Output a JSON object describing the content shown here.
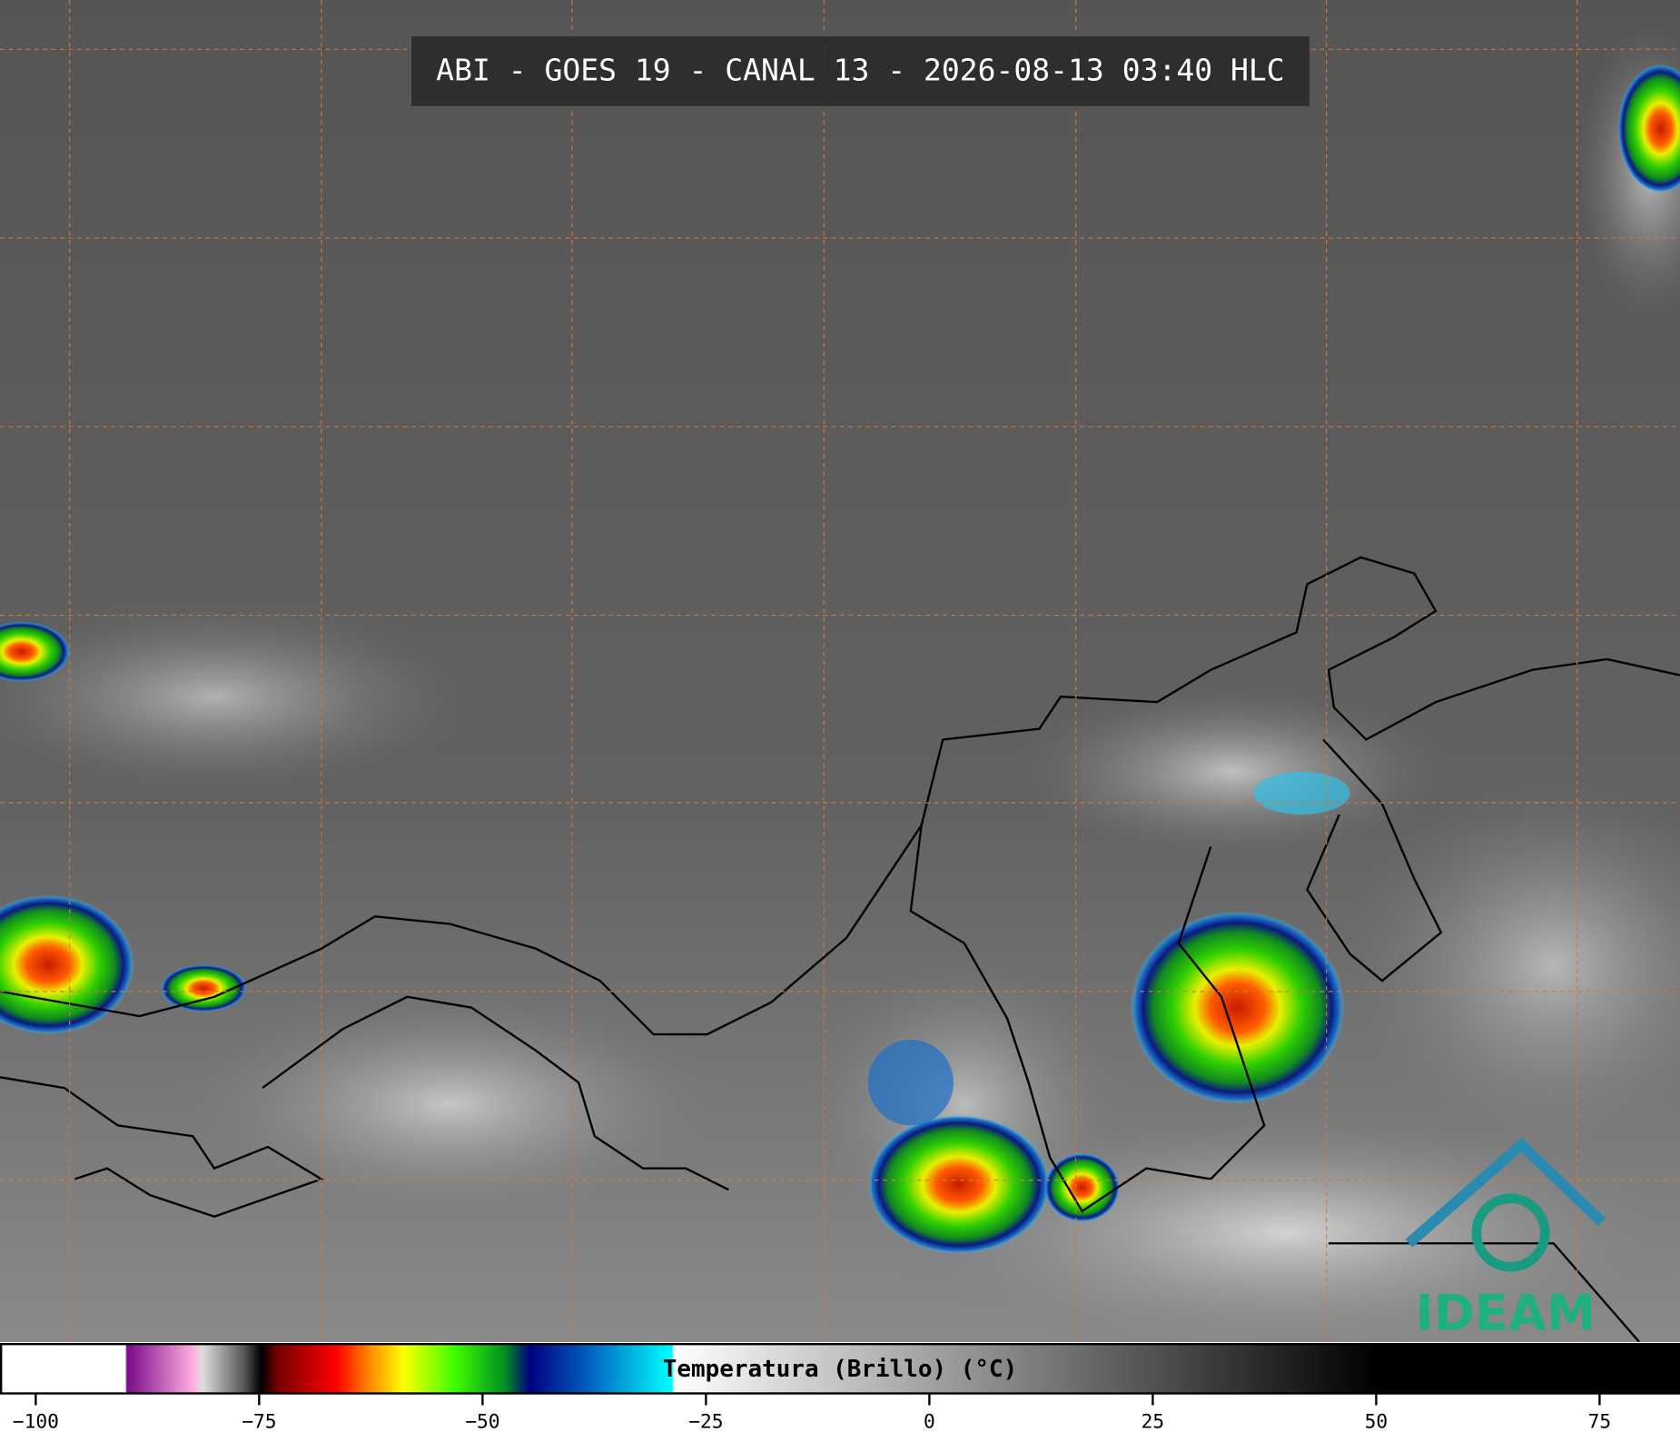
{
  "header": {
    "title": "ABI - GOES 19 - CANAL 13 - 2026-08-13 03:40 HLC"
  },
  "logo": {
    "text": "IDEAM"
  },
  "colorbar": {
    "label": "Temperatura (Brillo) (°C)",
    "clim": [
      -104,
      84
    ],
    "ticks": [
      {
        "value": -100,
        "label": "−100"
      },
      {
        "value": -75,
        "label": "−75"
      },
      {
        "value": -50,
        "label": "−50"
      },
      {
        "value": -25,
        "label": "−25"
      },
      0,
      25,
      50,
      75
    ]
  }
}
